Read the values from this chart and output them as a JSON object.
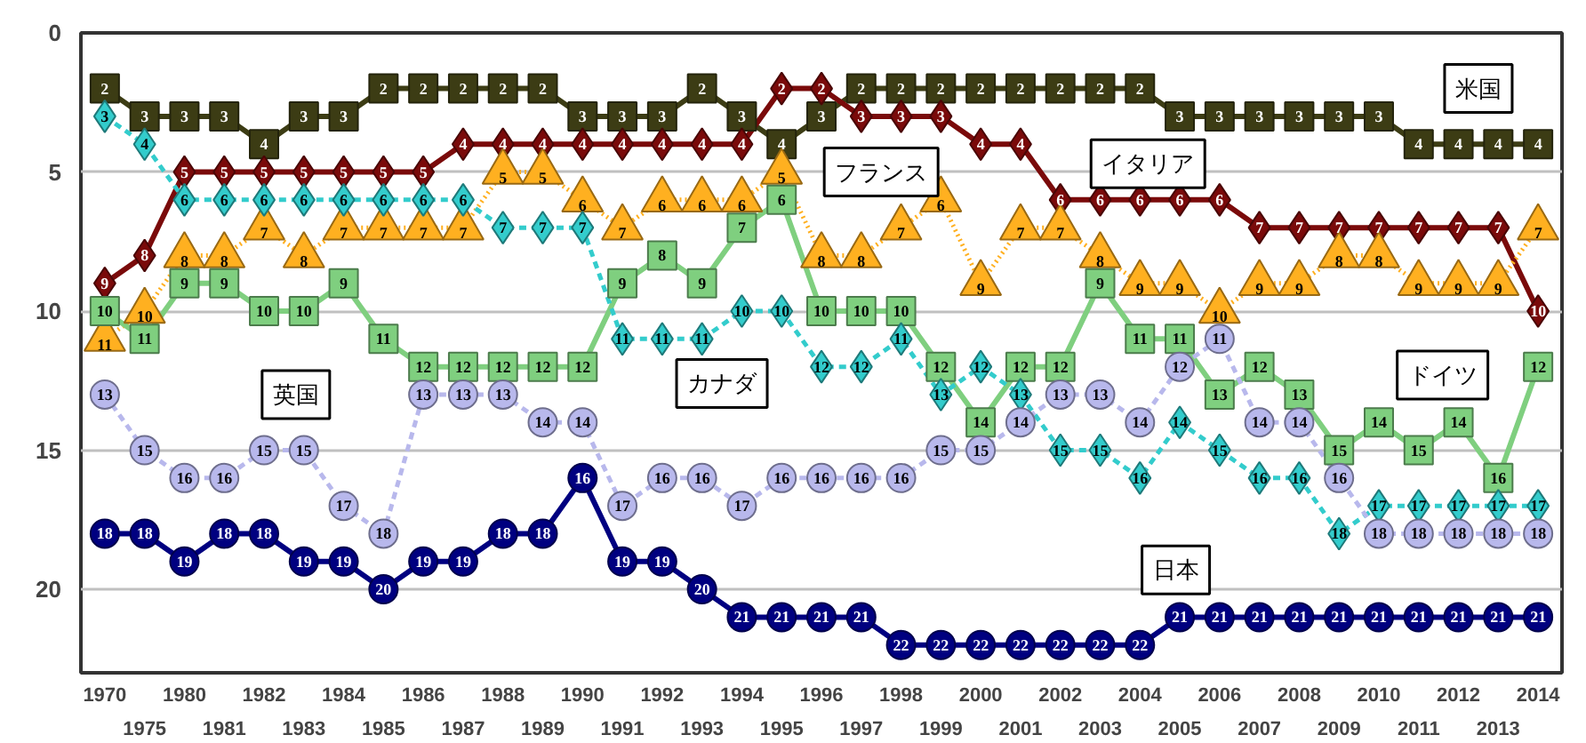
{
  "chart_data": {
    "type": "line",
    "categories": [
      "1970",
      "1975",
      "1980",
      "1981",
      "1982",
      "1983",
      "1984",
      "1985",
      "1986",
      "1987",
      "1988",
      "1989",
      "1990",
      "1991",
      "1992",
      "1993",
      "1994",
      "1995",
      "1996",
      "1997",
      "1998",
      "1999",
      "2000",
      "2001",
      "2002",
      "2003",
      "2004",
      "2005",
      "2006",
      "2007",
      "2008",
      "2009",
      "2010",
      "2011",
      "2012",
      "2013",
      "2014"
    ],
    "ylim": [
      23,
      0
    ],
    "yticks": [
      0,
      5,
      10,
      15,
      20
    ],
    "grid": "y",
    "legend": false,
    "data_labels": true,
    "series": [
      {
        "name": "米国",
        "color": "#3c3c14",
        "marker": "square",
        "line_style": "solid",
        "values": [
          2,
          3,
          3,
          3,
          4,
          3,
          3,
          2,
          2,
          2,
          2,
          2,
          3,
          3,
          3,
          2,
          3,
          4,
          3,
          2,
          2,
          2,
          2,
          2,
          2,
          2,
          2,
          3,
          3,
          3,
          3,
          3,
          3,
          4,
          4,
          4,
          4
        ]
      },
      {
        "name": "イタリア",
        "color": "#7a0a0a",
        "marker": "diamond",
        "line_style": "solid",
        "values": [
          9,
          8,
          5,
          5,
          5,
          5,
          5,
          5,
          5,
          4,
          4,
          4,
          4,
          4,
          4,
          4,
          4,
          2,
          2,
          3,
          3,
          3,
          4,
          4,
          6,
          6,
          6,
          6,
          6,
          7,
          7,
          7,
          7,
          7,
          7,
          7,
          10
        ]
      },
      {
        "name": "フランス",
        "color": "#ffb020",
        "marker": "triangle",
        "line_style": "dotted",
        "values": [
          11,
          10,
          8,
          8,
          7,
          8,
          7,
          7,
          7,
          7,
          5,
          5,
          6,
          7,
          6,
          6,
          6,
          5,
          8,
          8,
          7,
          6,
          9,
          7,
          7,
          8,
          9,
          9,
          10,
          9,
          9,
          8,
          8,
          9,
          9,
          9,
          7
        ]
      },
      {
        "name": "ドイツ",
        "color": "#7fcf7f",
        "marker": "square",
        "line_style": "solid",
        "values": [
          10,
          11,
          9,
          9,
          10,
          10,
          9,
          11,
          12,
          12,
          12,
          12,
          12,
          9,
          8,
          9,
          7,
          6,
          10,
          10,
          10,
          12,
          14,
          12,
          12,
          9,
          11,
          11,
          13,
          12,
          13,
          15,
          14,
          15,
          14,
          16,
          12
        ]
      },
      {
        "name": "カナダ",
        "color": "#33cccc",
        "marker": "diamond",
        "line_style": "dashed",
        "values": [
          3,
          4,
          6,
          6,
          6,
          6,
          6,
          6,
          6,
          6,
          7,
          7,
          7,
          11,
          11,
          11,
          10,
          10,
          12,
          12,
          11,
          13,
          12,
          13,
          15,
          15,
          16,
          14,
          15,
          16,
          16,
          18,
          17,
          17,
          17,
          17,
          17
        ]
      },
      {
        "name": "英国",
        "color": "#b8b8ec",
        "marker": "circle",
        "line_style": "dashed",
        "values": [
          13,
          15,
          16,
          16,
          15,
          15,
          17,
          18,
          13,
          13,
          13,
          14,
          14,
          17,
          16,
          16,
          17,
          16,
          16,
          16,
          16,
          15,
          15,
          14,
          13,
          13,
          14,
          12,
          11,
          14,
          14,
          16,
          18,
          18,
          18,
          18,
          18
        ]
      },
      {
        "name": "日本",
        "color": "#000080",
        "marker": "circle",
        "line_style": "solid",
        "values": [
          18,
          18,
          19,
          18,
          18,
          19,
          19,
          20,
          19,
          19,
          18,
          18,
          16,
          19,
          19,
          20,
          21,
          21,
          21,
          21,
          22,
          22,
          22,
          22,
          22,
          22,
          22,
          21,
          21,
          21,
          21,
          21,
          21,
          21,
          21,
          21,
          21
        ]
      }
    ]
  }
}
